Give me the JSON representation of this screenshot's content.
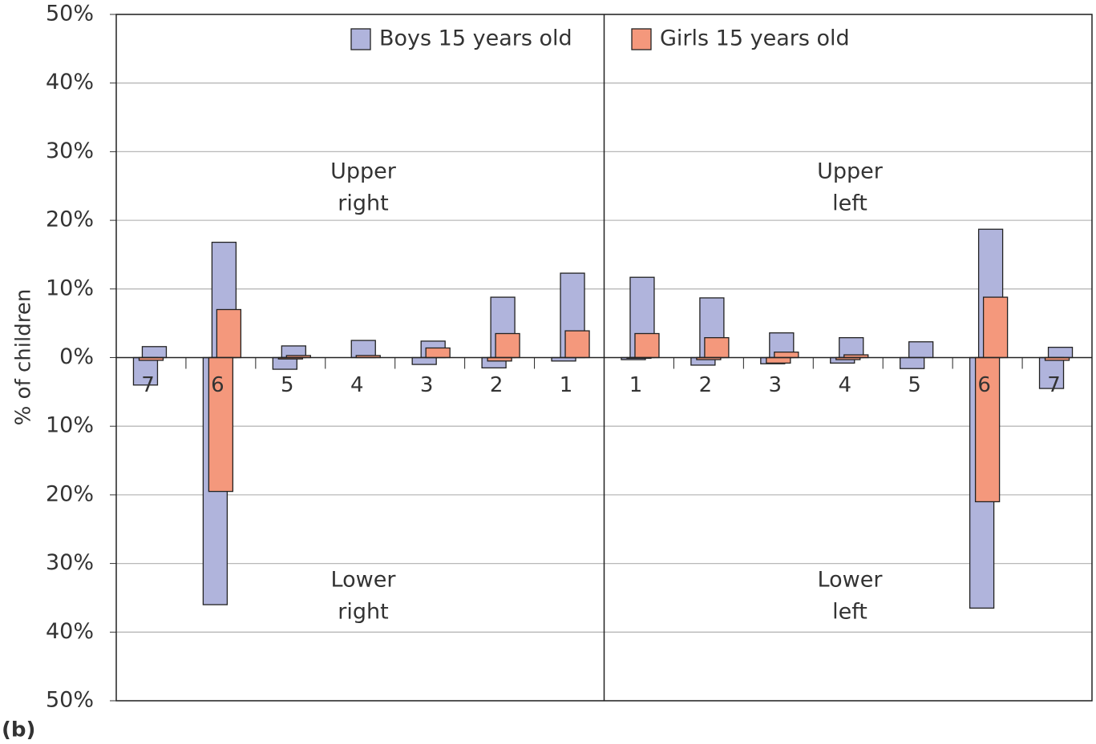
{
  "chart_data": {
    "type": "bar",
    "y_label": "% of children",
    "panel_label": "(b)",
    "categories": [
      "7",
      "6",
      "5",
      "4",
      "3",
      "2",
      "1",
      "1",
      "2",
      "3",
      "4",
      "5",
      "6",
      "7"
    ],
    "series": [
      {
        "name": "Boys 15 years old",
        "color": "#b0b4dc",
        "values": [
          1.6,
          16.8,
          1.7,
          2.5,
          2.4,
          8.8,
          12.3,
          11.7,
          8.7,
          3.6,
          2.9,
          2.3,
          18.7,
          1.5
        ],
        "lower": [
          -4.0,
          -36.0,
          -1.7,
          0,
          -1.0,
          -1.5,
          -0.5,
          -0.3,
          -1.1,
          -0.9,
          -0.8,
          -1.6,
          -36.5,
          -4.5
        ]
      },
      {
        "name": "Girls 15 years old",
        "color": "#f4987c",
        "values": [
          0,
          7.0,
          0.3,
          0.3,
          1.4,
          3.5,
          3.9,
          3.5,
          2.9,
          0.8,
          0.4,
          0,
          8.8,
          0
        ],
        "lower": [
          -0.4,
          -19.5,
          -0.2,
          0,
          0,
          -0.5,
          0,
          -0.1,
          -0.3,
          -0.8,
          -0.3,
          0,
          -21.0,
          -0.4
        ]
      }
    ],
    "annotations": [
      [
        "Upper",
        "right"
      ],
      [
        "Lower",
        "right"
      ],
      [
        "Upper",
        "left"
      ],
      [
        "Lower",
        "left"
      ]
    ],
    "ylim": [
      -50,
      50
    ],
    "yticks": [
      {
        "value": 50,
        "label": "50%"
      },
      {
        "value": 40,
        "label": "40%"
      },
      {
        "value": 30,
        "label": "30%"
      },
      {
        "value": 20,
        "label": "20%"
      },
      {
        "value": 10,
        "label": "10%"
      },
      {
        "value": 0,
        "label": "0%"
      },
      {
        "value": -10,
        "label": "10%"
      },
      {
        "value": -20,
        "label": "20%"
      },
      {
        "value": -30,
        "label": "30%"
      },
      {
        "value": -40,
        "label": "40%"
      },
      {
        "value": -50,
        "label": "50%"
      }
    ],
    "grid": true,
    "legend": "top"
  }
}
